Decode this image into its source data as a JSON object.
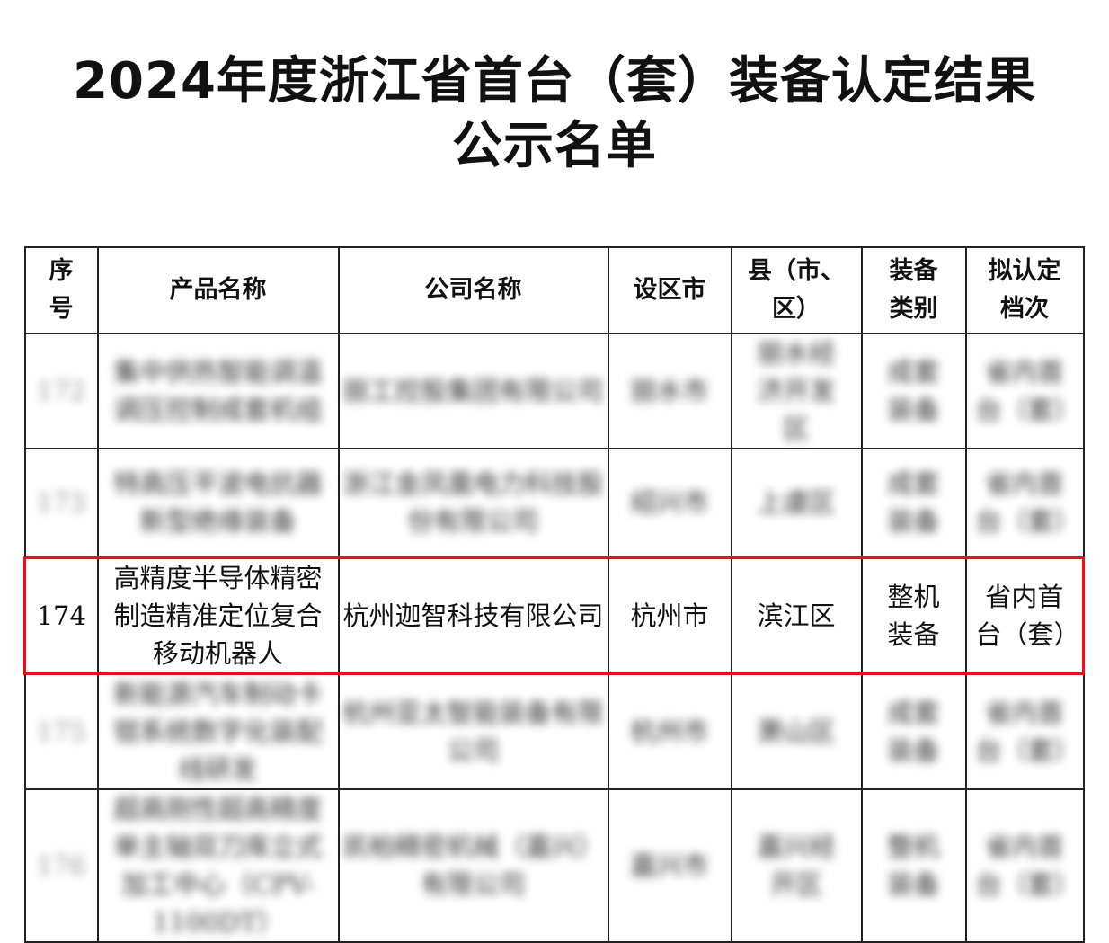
{
  "title_line1": "2024年度浙江省首台（套）装备认定结果",
  "title_line2": "公示名单",
  "highlight_color": "#e8101a",
  "headers": [
    "序号",
    "产品名称",
    "公司名称",
    "设区市",
    "县（市、区）",
    "装备类别",
    "拟认定档次"
  ],
  "rows": [
    {
      "no": "172",
      "product": "集中供热智能调温调压控制成套机组",
      "company": "丽工控股集团有限公司",
      "city": "丽水市",
      "county": "丽水经济开发区",
      "category": "成套装备",
      "tier": "省内首台（套）",
      "blurred": true
    },
    {
      "no": "173",
      "product": "特高压平波电抗器新型绝缘装备",
      "company": "浙江金凤凰电力科技股份有限公司",
      "city": "绍兴市",
      "county": "上虞区",
      "category": "成套装备",
      "tier": "省内首台（套）",
      "blurred": true
    },
    {
      "no": "174",
      "product": "高精度半导体精密制造精准定位复合移动机器人",
      "company": "杭州迦智科技有限公司",
      "city": "杭州市",
      "county": "滨江区",
      "category": "整机装备",
      "tier": "省内首台（套）",
      "blurred": false
    },
    {
      "no": "175",
      "product": "新能源汽车制动卡钳系统数字化装配线研发",
      "company": "杭州亚太智能装备有限公司",
      "city": "杭州市",
      "county": "萧山区",
      "category": "成套装备",
      "tier": "省内首台（套）",
      "blurred": true
    },
    {
      "no": "176",
      "product": "超高刚性超高精度单主轴双刀库立式加工中心（CPV-1100DT）",
      "company": "凯柏精密机械（嘉兴）有限公司",
      "city": "嘉兴市",
      "county": "嘉兴经开区",
      "category": "整机装备",
      "tier": "省内首台（套）",
      "blurred": true
    }
  ]
}
